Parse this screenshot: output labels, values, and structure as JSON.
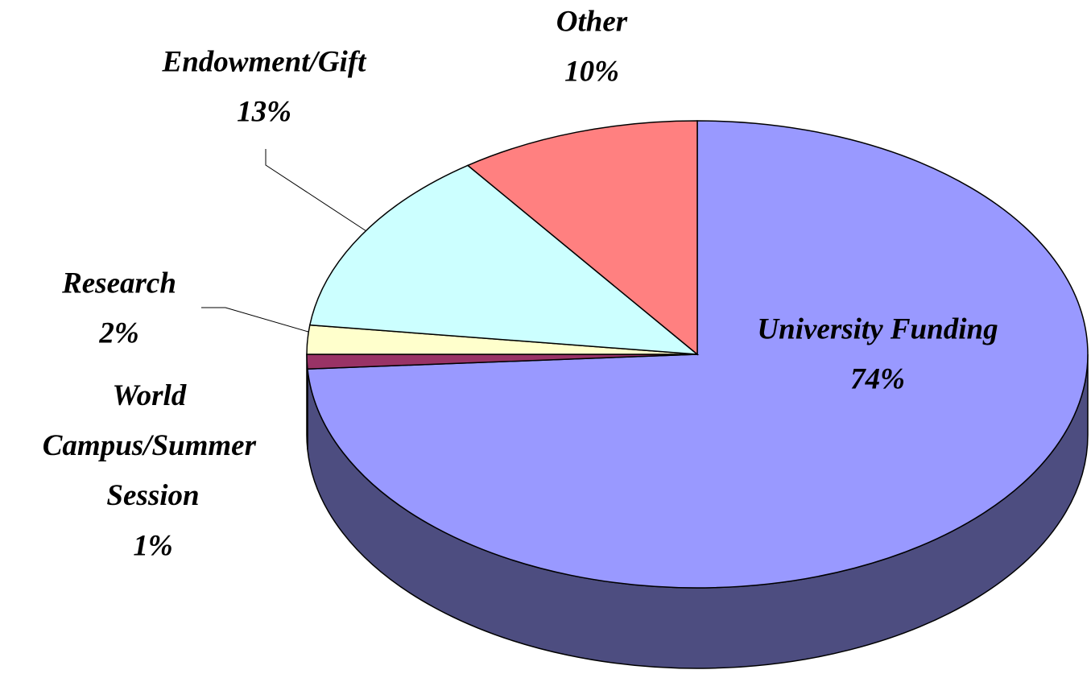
{
  "chart_data": {
    "type": "pie",
    "categories": [
      "University Funding",
      "World Campus/Summer Session",
      "Research",
      "Endowment/Gift",
      "Other"
    ],
    "values": [
      74,
      1,
      2,
      13,
      10
    ],
    "value_labels": [
      "74%",
      "1%",
      "2%",
      "13%",
      "10%"
    ],
    "colors": [
      "#9999ff",
      "#993366",
      "#ffffcc",
      "#ccffff",
      "#ff8080"
    ]
  }
}
